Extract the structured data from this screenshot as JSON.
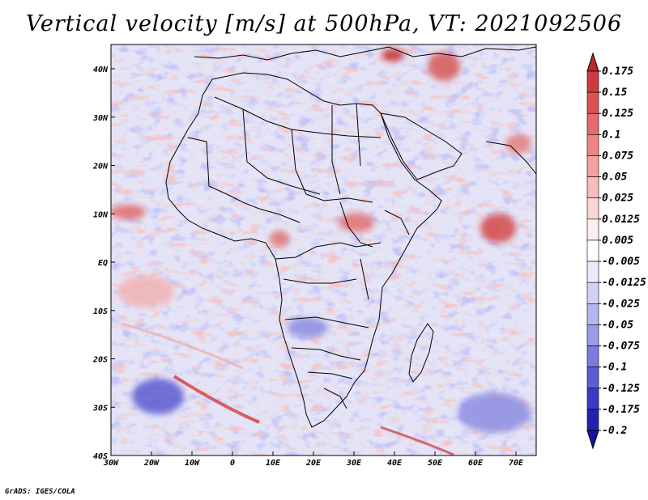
{
  "title": "Vertical velocity [m/s] at 500hPa, VT: 2021092506",
  "map": {
    "lon_labels": [
      "30W",
      "20W",
      "10W",
      "0",
      "10E",
      "20E",
      "30E",
      "40E",
      "50E",
      "60E",
      "70E"
    ],
    "lat_labels": [
      "40N",
      "30N",
      "20N",
      "10N",
      "EQ",
      "10S",
      "20S",
      "30S",
      "40S"
    ]
  },
  "colorbar": {
    "labels": [
      "0.175",
      "0.15",
      "0.125",
      "0.1",
      "0.075",
      "0.05",
      "0.025",
      "0.0125",
      "0.005",
      "-0.005",
      "-0.0125",
      "-0.025",
      "-0.05",
      "-0.075",
      "-0.1",
      "-0.125",
      "-0.175",
      "-0.2"
    ],
    "colors": [
      "#c0262b",
      "#cf3a3e",
      "#dc5254",
      "#e66a6b",
      "#ee8584",
      "#f3a19f",
      "#f7bdbb",
      "#fad6d4",
      "#fdeeee",
      "#ffffff",
      "#eaeafb",
      "#d1d1f6",
      "#b5b5ef",
      "#9b9be8",
      "#7c7cde",
      "#5d5dd2",
      "#3a3ac4",
      "#2222b0",
      "#14149c"
    ]
  },
  "credit": "GrADS: IGES/COLA"
}
